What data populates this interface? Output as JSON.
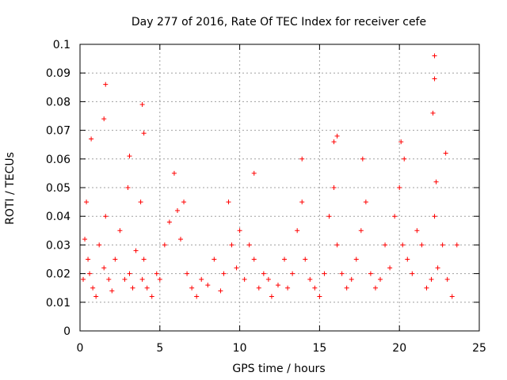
{
  "chart_data": {
    "type": "scatter",
    "title": "Day 277 of 2016, Rate Of TEC Index for receiver cefe",
    "xlabel": "GPS time / hours",
    "ylabel": "ROTI / TECUs",
    "xlim": [
      0,
      25
    ],
    "ylim": [
      0,
      0.1
    ],
    "xticks": [
      0,
      5,
      10,
      15,
      20,
      25
    ],
    "xtick_labels": [
      "0",
      "5",
      "10",
      "15",
      "20",
      "25"
    ],
    "yticks": [
      0,
      0.01,
      0.02,
      0.03,
      0.04,
      0.05,
      0.06,
      0.07,
      0.08,
      0.09,
      0.1
    ],
    "ytick_labels": [
      "0",
      "0.01",
      "0.02",
      "0.03",
      "0.04",
      "0.05",
      "0.06",
      "0.07",
      "0.08",
      "0.09",
      "0.1"
    ],
    "grid": true,
    "marker": "plus",
    "color": "#ff0000",
    "series": [
      {
        "name": "ROTI",
        "x": [
          0.2,
          0.3,
          0.4,
          0.5,
          0.6,
          0.8,
          1.0,
          1.2,
          1.5,
          1.6,
          1.8,
          2.0,
          2.2,
          2.5,
          2.8,
          3.0,
          3.1,
          3.3,
          3.5,
          3.8,
          3.9,
          4.0,
          4.2,
          4.5,
          4.8,
          5.0,
          5.3,
          5.6,
          5.9,
          6.1,
          6.3,
          6.5,
          6.7,
          7.0,
          7.3,
          7.6,
          8.0,
          8.4,
          8.8,
          9.0,
          9.3,
          9.5,
          9.8,
          10.0,
          10.3,
          10.6,
          10.9,
          11.2,
          11.5,
          11.8,
          12.0,
          12.4,
          12.8,
          13.0,
          13.3,
          13.6,
          13.9,
          14.1,
          14.4,
          14.7,
          15.0,
          15.3,
          15.6,
          15.9,
          16.1,
          16.4,
          16.7,
          17.0,
          17.3,
          17.6,
          17.9,
          18.2,
          18.5,
          18.8,
          19.1,
          19.4,
          19.7,
          20.0,
          20.2,
          20.5,
          20.8,
          21.1,
          21.4,
          21.7,
          22.0,
          22.2,
          22.4,
          22.7,
          23.0,
          23.3,
          23.6,
          0.7,
          1.5,
          1.6,
          3.1,
          3.9,
          4.0,
          10.9,
          13.9,
          15.9,
          16.1,
          17.7,
          20.1,
          20.3,
          22.1,
          22.2,
          22.2,
          22.3,
          22.9
        ],
        "y": [
          0.018,
          0.032,
          0.045,
          0.025,
          0.02,
          0.015,
          0.012,
          0.03,
          0.022,
          0.04,
          0.018,
          0.014,
          0.025,
          0.035,
          0.018,
          0.05,
          0.02,
          0.015,
          0.028,
          0.045,
          0.018,
          0.025,
          0.015,
          0.012,
          0.02,
          0.018,
          0.03,
          0.038,
          0.055,
          0.042,
          0.032,
          0.045,
          0.02,
          0.015,
          0.012,
          0.018,
          0.016,
          0.025,
          0.014,
          0.02,
          0.045,
          0.03,
          0.022,
          0.035,
          0.018,
          0.03,
          0.025,
          0.015,
          0.02,
          0.018,
          0.012,
          0.016,
          0.025,
          0.015,
          0.02,
          0.035,
          0.045,
          0.025,
          0.018,
          0.015,
          0.012,
          0.02,
          0.04,
          0.05,
          0.03,
          0.02,
          0.015,
          0.018,
          0.025,
          0.035,
          0.045,
          0.02,
          0.015,
          0.018,
          0.03,
          0.022,
          0.04,
          0.05,
          0.03,
          0.025,
          0.02,
          0.035,
          0.03,
          0.015,
          0.018,
          0.04,
          0.022,
          0.03,
          0.018,
          0.012,
          0.03,
          0.067,
          0.074,
          0.086,
          0.061,
          0.079,
          0.069,
          0.055,
          0.06,
          0.066,
          0.068,
          0.06,
          0.066,
          0.06,
          0.076,
          0.088,
          0.096,
          0.052,
          0.062
        ]
      }
    ]
  }
}
